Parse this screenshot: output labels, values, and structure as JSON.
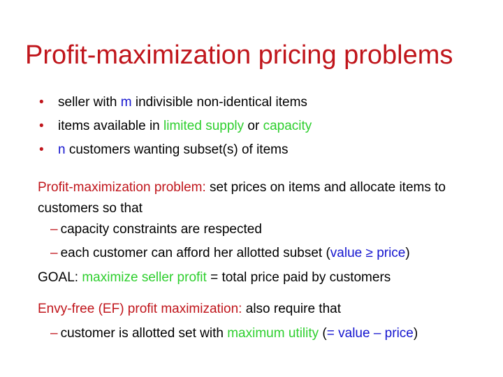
{
  "title": "Profit-maximization pricing problems",
  "colors": {
    "title": "#c0151b",
    "accent_blue": "#1515cf",
    "accent_green": "#2ecf2e",
    "text": "#000000",
    "background": "#ffffff"
  },
  "bullets": [
    {
      "marker": "•",
      "pre": "seller with ",
      "hl": "m",
      "post": " indivisible non-identical items"
    },
    {
      "marker": "•",
      "pre": "items available in ",
      "hl1": "limited supply",
      "mid": " or ",
      "hl2": "capacity"
    },
    {
      "marker": "•",
      "hl": "n",
      "post": " customers wanting subset(s) of items"
    }
  ],
  "problem": {
    "label": "Profit-maximization problem:",
    "text": " set prices on items and allocate items to customers so that",
    "subs": [
      {
        "dash": "–",
        "text": "capacity constraints are respected"
      },
      {
        "dash": "–",
        "pre": "each customer can afford her allotted subset (",
        "hl": "value ≥ price",
        "post": ")"
      }
    ]
  },
  "goal": {
    "label": "GOAL:",
    "hl": "maximize seller profit",
    "text": " = total price paid by customers"
  },
  "envy": {
    "label": "Envy-free (EF) profit maximization:",
    "text": " also require that",
    "sub": {
      "dash": "–",
      "pre": "customer is allotted set with ",
      "hl": "maximum utility",
      "mid": " (",
      "formula": "= value – price",
      "post": ")"
    }
  }
}
